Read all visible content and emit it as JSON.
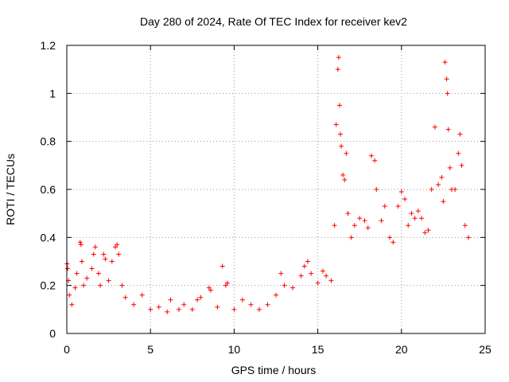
{
  "chart_data": {
    "type": "scatter",
    "title": "Day 280 of 2024, Rate Of TEC Index for receiver kev2",
    "xlabel": "GPS time / hours",
    "ylabel": "ROTI / TECUs",
    "xlim": [
      0,
      25
    ],
    "ylim": [
      0,
      1.2
    ],
    "x_ticks": [
      "0",
      "5",
      "10",
      "15",
      "20",
      "25"
    ],
    "y_ticks": [
      "0",
      "0.2",
      "0.4",
      "0.6",
      "0.8",
      "1",
      "1.2"
    ],
    "grid": true,
    "marker": "+",
    "marker_color": "#ff0000",
    "series": [
      {
        "name": "ROTI",
        "points": [
          [
            0.02,
            0.29
          ],
          [
            0.05,
            0.27
          ],
          [
            0.1,
            0.22
          ],
          [
            0.15,
            0.16
          ],
          [
            0.3,
            0.12
          ],
          [
            0.5,
            0.19
          ],
          [
            0.6,
            0.25
          ],
          [
            0.8,
            0.38
          ],
          [
            0.85,
            0.37
          ],
          [
            0.9,
            0.3
          ],
          [
            1.0,
            0.2
          ],
          [
            1.2,
            0.23
          ],
          [
            1.5,
            0.27
          ],
          [
            1.6,
            0.33
          ],
          [
            1.7,
            0.36
          ],
          [
            1.9,
            0.25
          ],
          [
            2.0,
            0.2
          ],
          [
            2.2,
            0.33
          ],
          [
            2.3,
            0.31
          ],
          [
            2.5,
            0.22
          ],
          [
            2.7,
            0.3
          ],
          [
            2.9,
            0.36
          ],
          [
            3.0,
            0.37
          ],
          [
            3.1,
            0.33
          ],
          [
            3.3,
            0.2
          ],
          [
            3.5,
            0.15
          ],
          [
            4.0,
            0.12
          ],
          [
            4.5,
            0.16
          ],
          [
            5.0,
            0.1
          ],
          [
            5.5,
            0.11
          ],
          [
            6.0,
            0.09
          ],
          [
            6.2,
            0.14
          ],
          [
            6.7,
            0.1
          ],
          [
            7.0,
            0.12
          ],
          [
            7.5,
            0.1
          ],
          [
            7.8,
            0.14
          ],
          [
            8.0,
            0.15
          ],
          [
            8.5,
            0.19
          ],
          [
            8.6,
            0.18
          ],
          [
            9.0,
            0.11
          ],
          [
            9.3,
            0.28
          ],
          [
            9.5,
            0.2
          ],
          [
            9.6,
            0.21
          ],
          [
            10.0,
            0.1
          ],
          [
            10.5,
            0.14
          ],
          [
            11.0,
            0.12
          ],
          [
            11.5,
            0.1
          ],
          [
            12.0,
            0.12
          ],
          [
            12.5,
            0.16
          ],
          [
            12.8,
            0.25
          ],
          [
            13.0,
            0.2
          ],
          [
            13.5,
            0.19
          ],
          [
            14.0,
            0.24
          ],
          [
            14.2,
            0.28
          ],
          [
            14.4,
            0.3
          ],
          [
            14.6,
            0.25
          ],
          [
            15.0,
            0.21
          ],
          [
            15.3,
            0.26
          ],
          [
            15.5,
            0.24
          ],
          [
            15.8,
            0.22
          ],
          [
            16.0,
            0.45
          ],
          [
            16.1,
            0.87
          ],
          [
            16.2,
            1.1
          ],
          [
            16.25,
            1.15
          ],
          [
            16.3,
            0.95
          ],
          [
            16.35,
            0.83
          ],
          [
            16.4,
            0.78
          ],
          [
            16.5,
            0.66
          ],
          [
            16.6,
            0.64
          ],
          [
            16.7,
            0.75
          ],
          [
            16.8,
            0.5
          ],
          [
            17.0,
            0.4
          ],
          [
            17.2,
            0.45
          ],
          [
            17.5,
            0.48
          ],
          [
            17.8,
            0.47
          ],
          [
            18.0,
            0.44
          ],
          [
            18.2,
            0.74
          ],
          [
            18.4,
            0.72
          ],
          [
            18.5,
            0.6
          ],
          [
            18.8,
            0.47
          ],
          [
            19.0,
            0.53
          ],
          [
            19.3,
            0.4
          ],
          [
            19.5,
            0.38
          ],
          [
            19.8,
            0.53
          ],
          [
            20.0,
            0.59
          ],
          [
            20.2,
            0.56
          ],
          [
            20.4,
            0.45
          ],
          [
            20.6,
            0.5
          ],
          [
            20.8,
            0.48
          ],
          [
            21.0,
            0.51
          ],
          [
            21.2,
            0.48
          ],
          [
            21.4,
            0.42
          ],
          [
            21.6,
            0.43
          ],
          [
            21.8,
            0.6
          ],
          [
            22.0,
            0.86
          ],
          [
            22.2,
            0.62
          ],
          [
            22.4,
            0.65
          ],
          [
            22.5,
            0.55
          ],
          [
            22.6,
            1.13
          ],
          [
            22.7,
            1.06
          ],
          [
            22.75,
            1.0
          ],
          [
            22.8,
            0.85
          ],
          [
            22.9,
            0.69
          ],
          [
            23.0,
            0.6
          ],
          [
            23.2,
            0.6
          ],
          [
            23.4,
            0.75
          ],
          [
            23.5,
            0.83
          ],
          [
            23.6,
            0.7
          ],
          [
            23.8,
            0.45
          ],
          [
            24.0,
            0.4
          ]
        ]
      }
    ]
  }
}
